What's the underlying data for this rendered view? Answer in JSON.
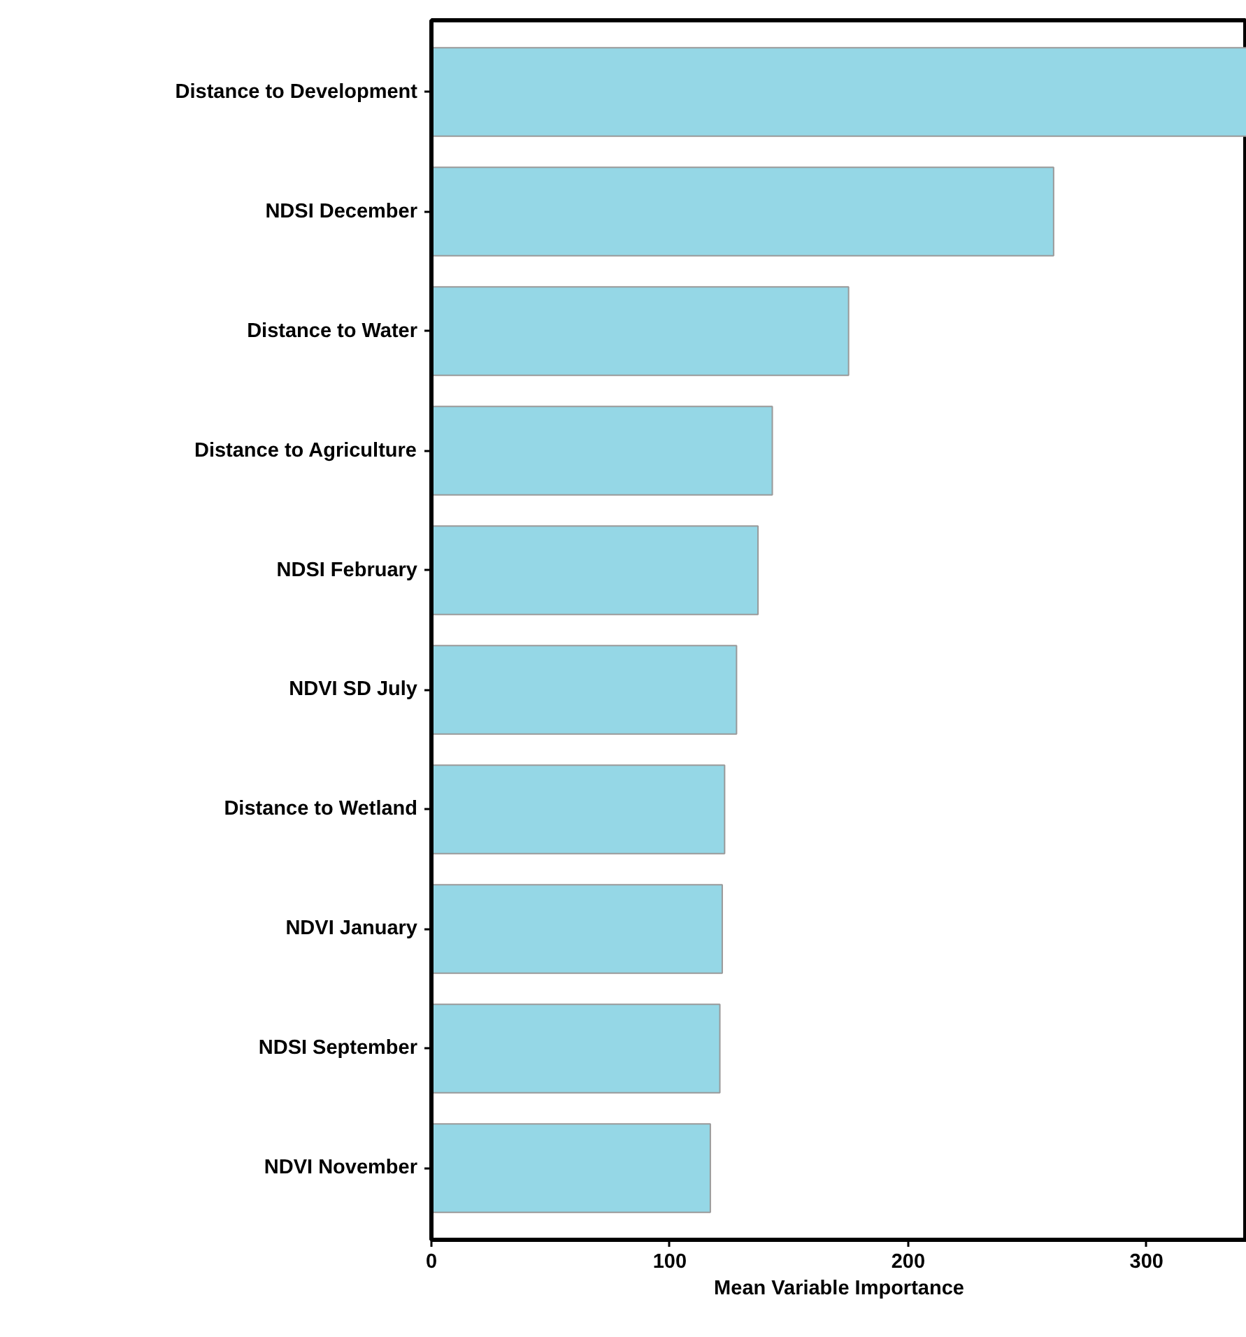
{
  "chart_data": {
    "type": "bar",
    "orientation": "horizontal",
    "xlabel": "Mean Variable Importance",
    "categories": [
      "Distance to Development",
      "NDSI December",
      "Distance to Water",
      "Distance to Agriculture",
      "NDSI February",
      "NDVI SD July",
      "Distance to Wetland",
      "NDVI January",
      "NDSI September",
      "NDVI November"
    ],
    "values": [
      342,
      261,
      175,
      143,
      137,
      128,
      123,
      122,
      121,
      117
    ],
    "color": "#95d7e6",
    "xlim": [
      0,
      342
    ],
    "xticks": [
      0,
      100,
      200,
      300
    ],
    "grid": false
  }
}
